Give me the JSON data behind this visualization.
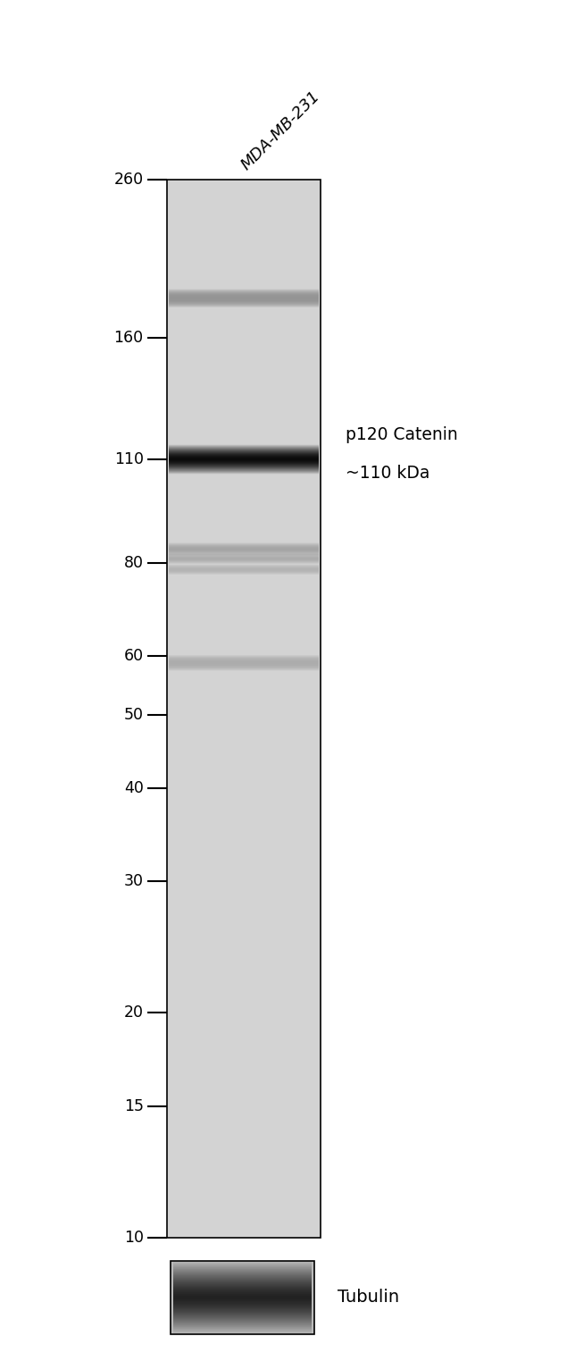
{
  "fig_width": 6.35,
  "fig_height": 15.14,
  "bg_color": "#ffffff",
  "gel_bg_color": "#d3d3d3",
  "marker_labels": [
    260,
    160,
    110,
    80,
    60,
    50,
    40,
    30,
    20,
    15,
    10
  ],
  "sample_label": "MDA-MB-231",
  "annotation_text_line1": "p120 Catenin",
  "annotation_text_line2": "~110 kDa",
  "tubulin_label": "Tubulin"
}
